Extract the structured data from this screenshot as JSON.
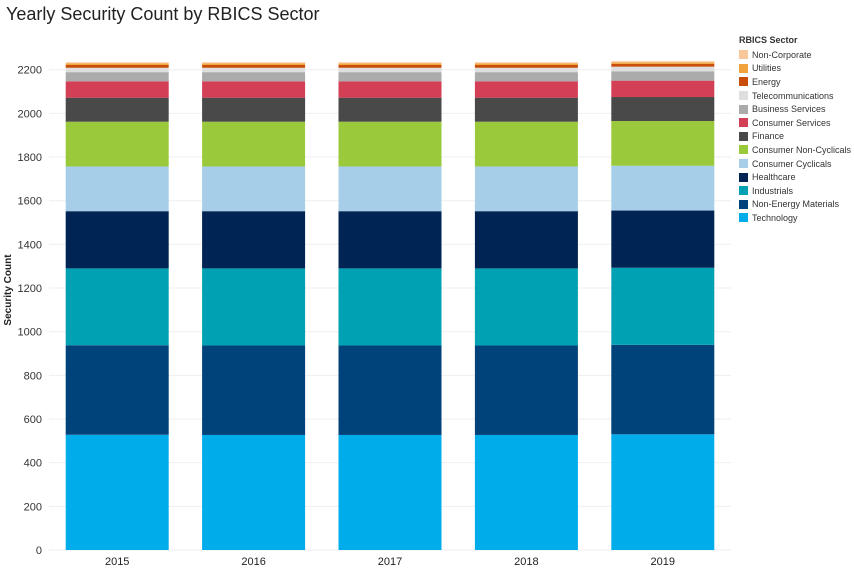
{
  "chart_data": {
    "type": "bar",
    "stacked": true,
    "title": "Yearly Security Count by RBICS Sector",
    "xlabel": "",
    "ylabel": "Security Count",
    "ylim": [
      0,
      2300
    ],
    "yticks": [
      0,
      200,
      400,
      600,
      800,
      1000,
      1200,
      1400,
      1600,
      1800,
      2000,
      2200
    ],
    "categories": [
      "2015",
      "2016",
      "2017",
      "2018",
      "2019"
    ],
    "legend_title": "RBICS Sector",
    "legend_position": "right",
    "series": [
      {
        "name": "Technology",
        "color": "#00ACE9",
        "values": [
          528,
          527,
          527,
          527,
          530
        ]
      },
      {
        "name": "Non-Energy Materials",
        "color": "#00427A",
        "values": [
          410,
          410,
          410,
          410,
          410
        ]
      },
      {
        "name": "Industrials",
        "color": "#00A1B3",
        "values": [
          352,
          353,
          353,
          353,
          353
        ]
      },
      {
        "name": "Healthcare",
        "color": "#002453",
        "values": [
          262,
          262,
          262,
          262,
          262
        ]
      },
      {
        "name": "Consumer Cyclicals",
        "color": "#A6CEE8",
        "values": [
          205,
          205,
          205,
          205,
          205
        ]
      },
      {
        "name": "Consumer Non-Cyclicals",
        "color": "#9ACA3C",
        "values": [
          205,
          205,
          205,
          205,
          205
        ]
      },
      {
        "name": "Finance",
        "color": "#494949",
        "values": [
          110,
          110,
          110,
          110,
          110
        ]
      },
      {
        "name": "Consumer Services",
        "color": "#D33F55",
        "values": [
          75,
          75,
          75,
          75,
          75
        ]
      },
      {
        "name": "Business Services",
        "color": "#ABABAB",
        "values": [
          42,
          42,
          42,
          42,
          42
        ]
      },
      {
        "name": "Telecommunications",
        "color": "#DEDEDE",
        "values": [
          20,
          20,
          20,
          20,
          22
        ]
      },
      {
        "name": "Energy",
        "color": "#C84E0A",
        "values": [
          13,
          13,
          13,
          13,
          13
        ]
      },
      {
        "name": "Utilities",
        "color": "#F0A33A",
        "values": [
          7,
          7,
          7,
          7,
          7
        ]
      },
      {
        "name": "Non-Corporate",
        "color": "#F8C89A",
        "values": [
          5,
          5,
          5,
          5,
          5
        ]
      }
    ]
  }
}
